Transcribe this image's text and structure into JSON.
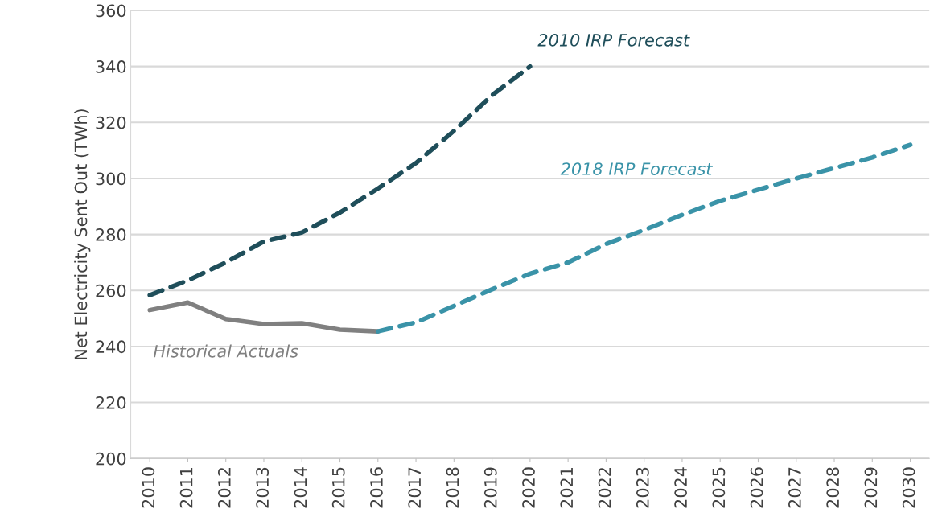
{
  "chart_data": {
    "type": "line",
    "ylabel": "Net Electricity Sent Out (TWh)",
    "categories": [
      "2010",
      "2011",
      "2012",
      "2013",
      "2014",
      "2015",
      "2016",
      "2017",
      "2018",
      "2019",
      "2020",
      "2021",
      "2022",
      "2023",
      "2024",
      "2025",
      "2026",
      "2027",
      "2028",
      "2029",
      "2030"
    ],
    "series": [
      {
        "name": "Historical Actuals",
        "color": "#808080",
        "line_style": "solid",
        "values": [
          253,
          255.7,
          249.8,
          248,
          248.3,
          246,
          245.4,
          null,
          null,
          null,
          null,
          null,
          null,
          null,
          null,
          null,
          null,
          null,
          null,
          null,
          null
        ]
      },
      {
        "name": "2010 IRP Forecast",
        "color": "#1f4e5a",
        "line_style": "dashed",
        "values": [
          258.3,
          263.6,
          270,
          277.5,
          280.7,
          287.8,
          296.4,
          305.5,
          317,
          329.7,
          340,
          null,
          null,
          null,
          null,
          null,
          null,
          null,
          null,
          null,
          null
        ]
      },
      {
        "name": "2018 IRP Forecast",
        "color": "#3a93a8",
        "line_style": "dashed",
        "values": [
          null,
          null,
          null,
          null,
          null,
          null,
          245.4,
          248.6,
          254.5,
          260.4,
          266,
          270,
          276.6,
          281.6,
          287,
          292,
          296,
          300,
          303.7,
          307.5,
          312
        ]
      }
    ],
    "ylim": [
      200,
      360
    ],
    "yticks": [
      200,
      220,
      240,
      260,
      280,
      300,
      320,
      340,
      360
    ],
    "grid": "y"
  }
}
